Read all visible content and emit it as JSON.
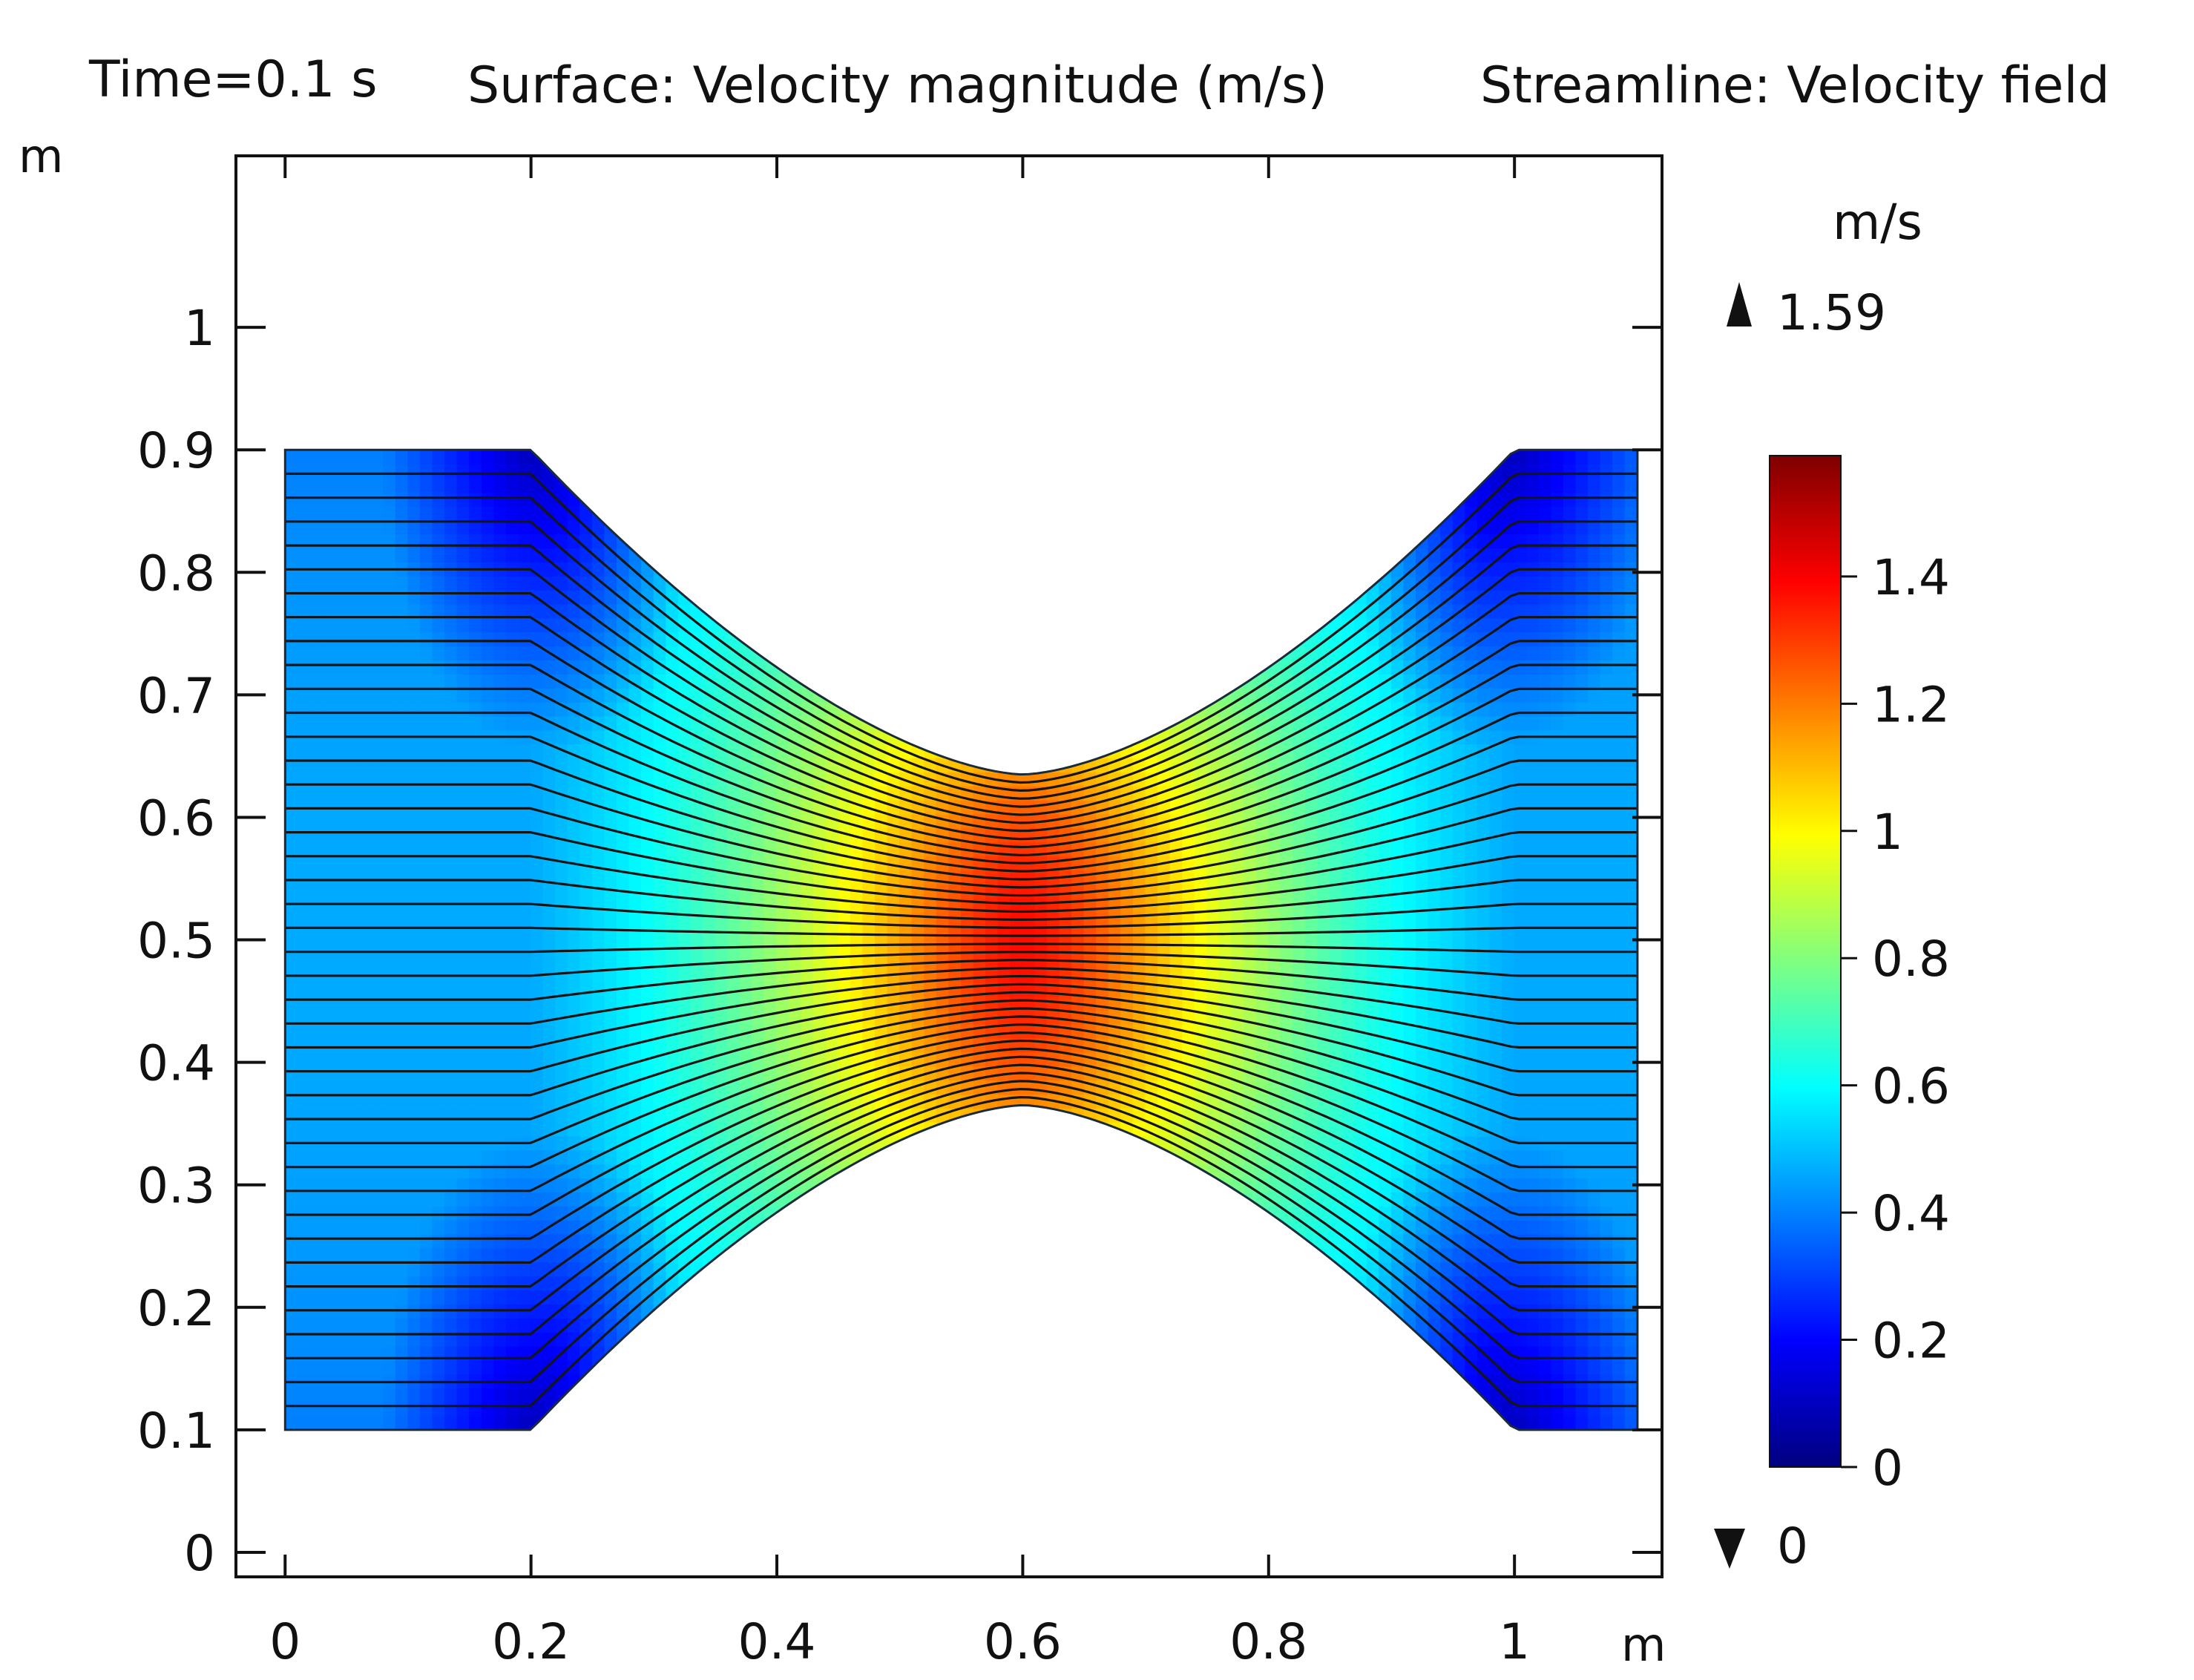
{
  "chart_data": {
    "type": "heatmap",
    "title": {
      "time": "Time=0.1 s",
      "surface": "Surface: Velocity magnitude (m/s)",
      "streamline": "Streamline: Velocity field"
    },
    "x_unit": "m",
    "y_unit": "m",
    "xlim": [
      -0.04,
      1.12
    ],
    "ylim": [
      -0.02,
      1.14
    ],
    "x_ticks": [
      0,
      0.2,
      0.4,
      0.6,
      0.8,
      1
    ],
    "x_tick_labels": [
      "0",
      "0.2",
      "0.4",
      "0.6",
      "0.8",
      "1"
    ],
    "y_ticks": [
      0,
      0.1,
      0.2,
      0.3,
      0.4,
      0.5,
      0.6,
      0.7,
      0.8,
      0.9,
      1
    ],
    "y_tick_labels": [
      "0",
      "0.1",
      "0.2",
      "0.3",
      "0.4",
      "0.5",
      "0.6",
      "0.7",
      "0.8",
      "0.9",
      "1"
    ],
    "domain": {
      "x_range": [
        0,
        1.1
      ],
      "y_range": [
        0.1,
        0.9
      ],
      "throat_x": 0.6,
      "throat_half_width": 0.135,
      "left_flat_end_x": 0.2,
      "right_flat_start_x": 1.0
    },
    "streamline_count": 41,
    "colorbar": {
      "unit": "m/s",
      "max_label": "1.59",
      "min_label": "0",
      "range": [
        0,
        1.59
      ],
      "ticks": [
        0,
        0.2,
        0.4,
        0.6,
        0.8,
        1,
        1.2,
        1.4
      ],
      "tick_labels": [
        "0",
        "0.2",
        "0.4",
        "0.6",
        "0.8",
        "1",
        "1.2",
        "1.4"
      ],
      "colormap": [
        "#00007f",
        "#0000ff",
        "#0080ff",
        "#00ffff",
        "#80ff80",
        "#ffff00",
        "#ff8000",
        "#ff0000",
        "#7f0000"
      ]
    }
  }
}
